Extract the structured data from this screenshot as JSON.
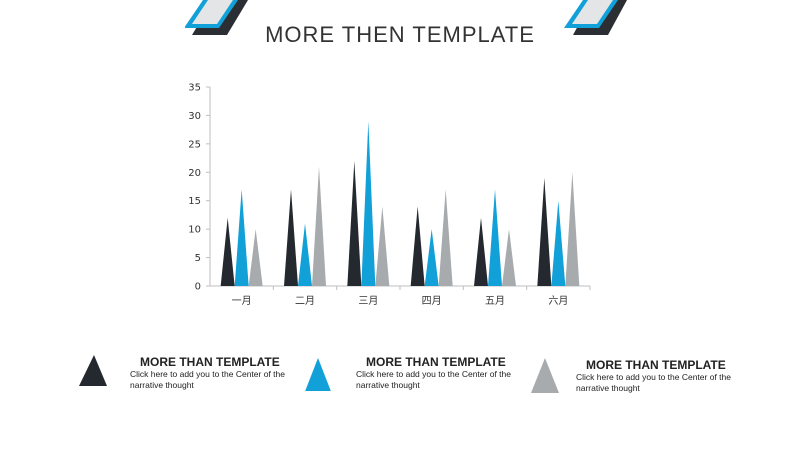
{
  "title": "MORE THEN TEMPLATE",
  "colors": {
    "dark": "#24292f",
    "blue": "#11a0d8",
    "gray": "#a7abae",
    "axis": "#bfbfbf"
  },
  "chart_data": {
    "type": "bar",
    "bar_shape": "triangle",
    "categories": [
      "一月",
      "二月",
      "三月",
      "四月",
      "五月",
      "六月"
    ],
    "series": [
      {
        "values": [
          12,
          17,
          22,
          14,
          12,
          19
        ]
      },
      {
        "values": [
          17,
          11,
          29,
          10,
          17,
          15
        ]
      },
      {
        "values": [
          10,
          21,
          14,
          17,
          10,
          20
        ]
      }
    ],
    "ylim": [
      0,
      35
    ],
    "yticks": [
      0,
      5,
      10,
      15,
      20,
      25,
      30,
      35
    ],
    "grid": false,
    "title": "",
    "xlabel": "",
    "ylabel": ""
  },
  "legend": [
    {
      "title": "MORE THAN TEMPLATE",
      "desc": "Click here to add  you to the Center of the narrative thought"
    },
    {
      "title": "MORE THAN TEMPLATE",
      "desc": "Click here to add  you to the Center of the narrative thought"
    },
    {
      "title": "MORE THAN TEMPLATE",
      "desc": "Click here to add  you to the Center of the narrative thought"
    }
  ]
}
